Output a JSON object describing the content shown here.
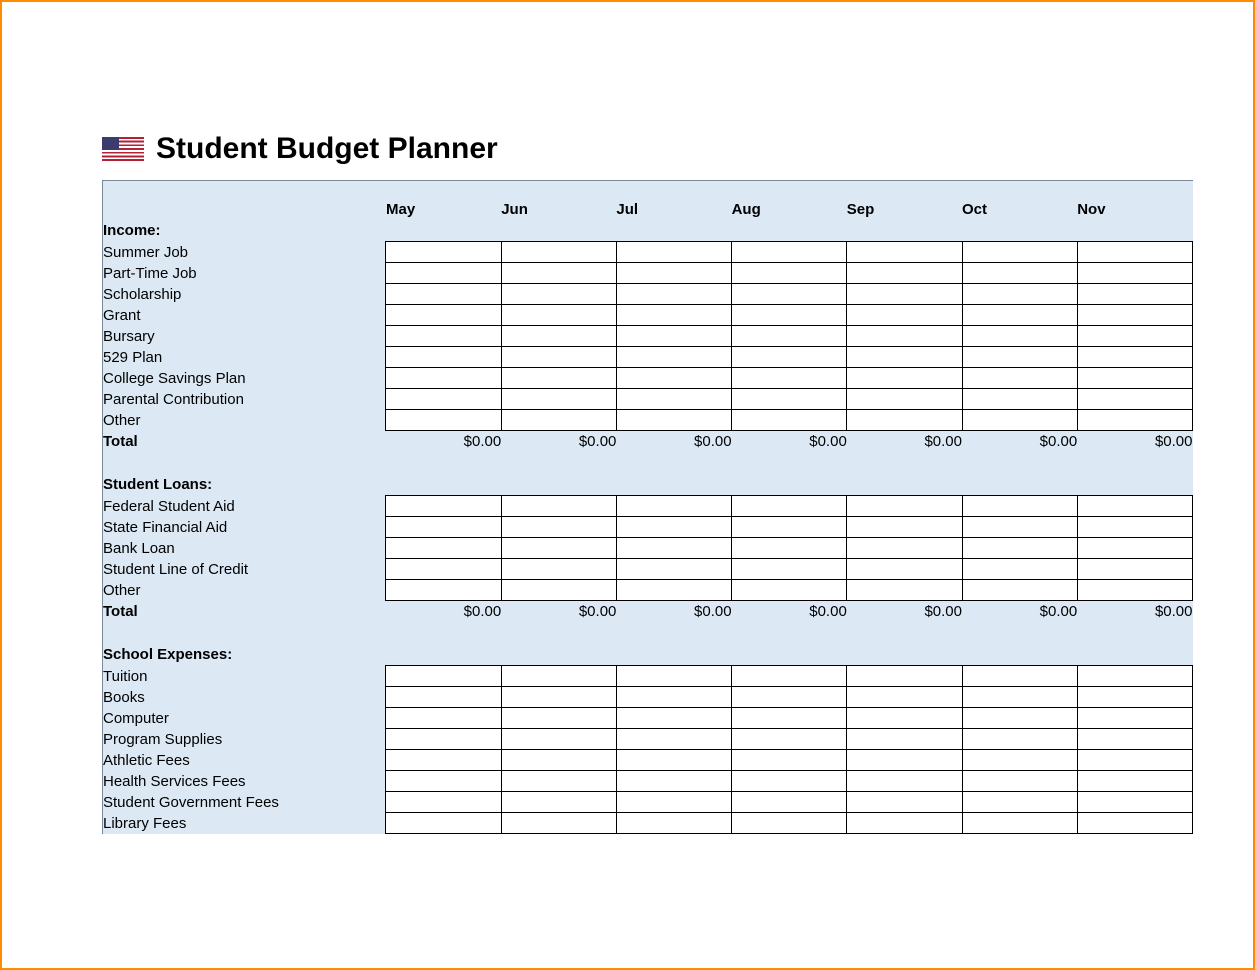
{
  "title": "Student Budget Planner",
  "flag_icon_name": "us-flag-icon",
  "colors": {
    "frame_border": "#ff8c00",
    "sheet_background": "#dce9f5",
    "cell_background": "#ffffff",
    "cell_border": "#000000",
    "text": "#000000"
  },
  "months": [
    "May",
    "Jun",
    "Jul",
    "Aug",
    "Sep",
    "Oct",
    "Nov"
  ],
  "sections": [
    {
      "header": "Income:",
      "items": [
        "Summer Job",
        "Part-Time Job",
        "Scholarship",
        "Grant",
        "Bursary",
        "529 Plan",
        "College Savings Plan",
        "Parental Contribution",
        "Other"
      ],
      "total_label": "Total",
      "total_values": [
        "$0.00",
        "$0.00",
        "$0.00",
        "$0.00",
        "$0.00",
        "$0.00",
        "$0.00"
      ]
    },
    {
      "header": "Student Loans:",
      "items": [
        "Federal Student Aid",
        "State Financial Aid",
        "Bank Loan",
        "Student Line of Credit",
        "Other"
      ],
      "total_label": "Total",
      "total_values": [
        "$0.00",
        "$0.00",
        "$0.00",
        "$0.00",
        "$0.00",
        "$0.00",
        "$0.00"
      ]
    },
    {
      "header": "School Expenses:",
      "items": [
        "Tuition",
        "Books",
        "Computer",
        "Program Supplies",
        "Athletic Fees",
        "Health Services Fees",
        "Student Government Fees",
        "Library Fees"
      ],
      "total_label": null,
      "total_values": null
    }
  ]
}
